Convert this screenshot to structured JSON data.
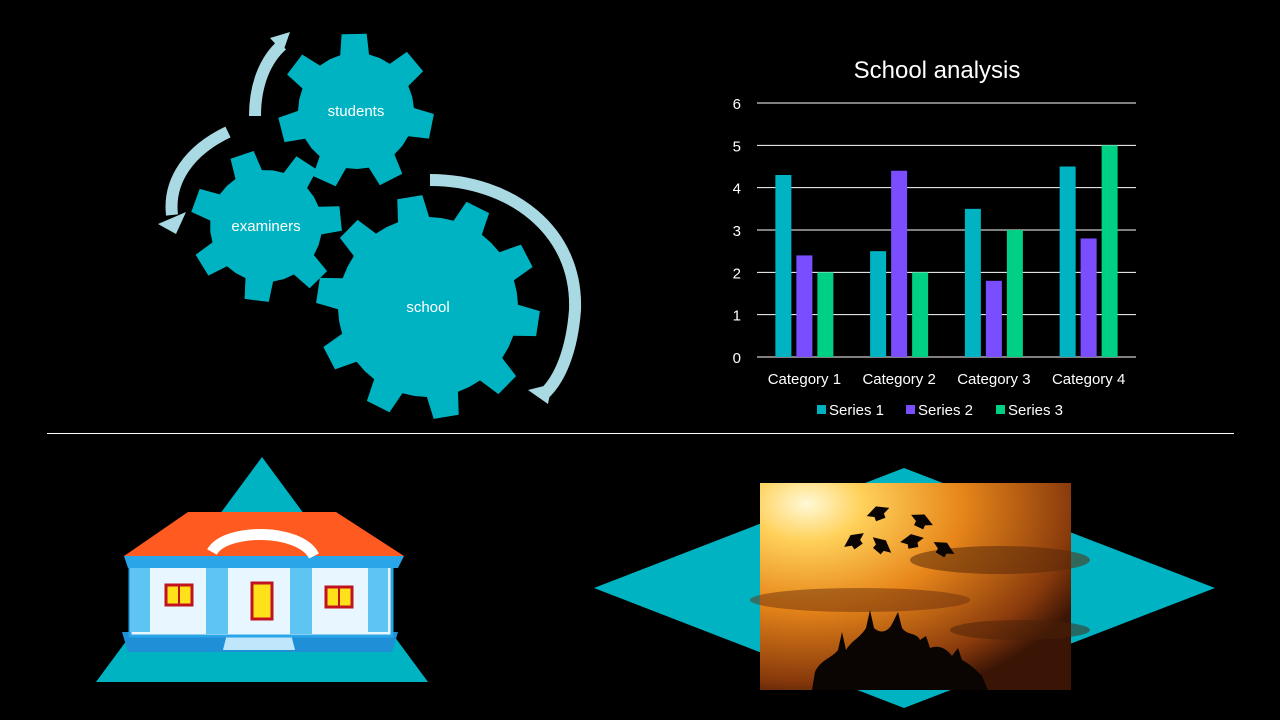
{
  "colors": {
    "background": "#000000",
    "teal": "#00b3c2",
    "arrow": "#a9d9e3",
    "divider": "#ffffff",
    "series1": "#00b3c2",
    "series2": "#7a4dff",
    "series3": "#00d084",
    "roof": "#ff5a1f",
    "walls": "#2aa6e8"
  },
  "diagram": {
    "gears": [
      {
        "label": "students"
      },
      {
        "label": "examiners"
      },
      {
        "label": "school"
      }
    ]
  },
  "chart_data": {
    "type": "bar",
    "title": "School analysis",
    "categories": [
      "Category 1",
      "Category 2",
      "Category 3",
      "Category 4"
    ],
    "series": [
      {
        "name": "Series 1",
        "values": [
          4.3,
          2.5,
          3.5,
          4.5
        ]
      },
      {
        "name": "Series 2",
        "values": [
          2.4,
          4.4,
          1.8,
          2.8
        ]
      },
      {
        "name": "Series 3",
        "values": [
          2,
          2,
          3,
          5
        ]
      }
    ],
    "ylim": [
      0,
      6
    ],
    "yticks": [
      0,
      1,
      2,
      3,
      4,
      5,
      6
    ],
    "grid": true,
    "legend": "bottom"
  },
  "illustrations": {
    "left": "school-building-icon",
    "right": "graduation-caps-sunset-photo"
  }
}
